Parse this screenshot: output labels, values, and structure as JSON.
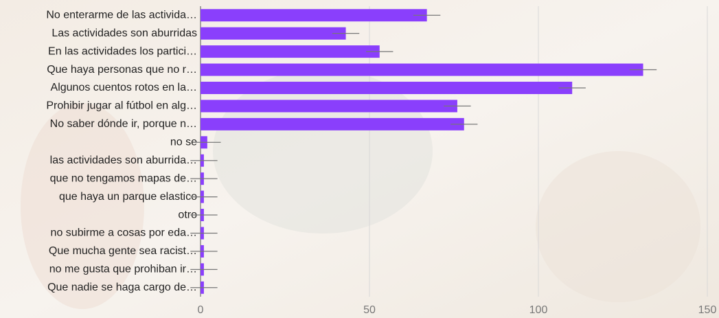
{
  "chart_data": {
    "type": "bar",
    "orientation": "horizontal",
    "categories": [
      "No enterarme de las activida…",
      "Las actividades son aburridas",
      "En las actividades los partici…",
      "Que haya personas que no r…",
      "Algunos cuentos rotos en la…",
      "Prohibir jugar al fútbol en alg…",
      "No saber dónde ir, porque n…",
      "no se",
      "las actividades son aburrida…",
      "que no tengamos mapas de…",
      "que haya un parque elastico",
      "otro",
      "no subirme a cosas por eda…",
      "Que mucha gente sea racist…",
      "no me gusta que prohiban ir…",
      "Que nadie se haga cargo de…"
    ],
    "values": [
      67,
      43,
      53,
      131,
      110,
      76,
      78,
      2,
      1,
      1,
      1,
      1,
      1,
      1,
      1,
      1
    ],
    "errors": [
      4,
      4,
      4,
      4,
      4,
      4,
      4,
      4,
      4,
      4,
      4,
      4,
      4,
      4,
      4,
      4
    ],
    "color": "#8a3ffc",
    "xlim": [
      0,
      150
    ],
    "xticks": [
      0,
      50,
      100,
      150
    ],
    "grid": true
  }
}
